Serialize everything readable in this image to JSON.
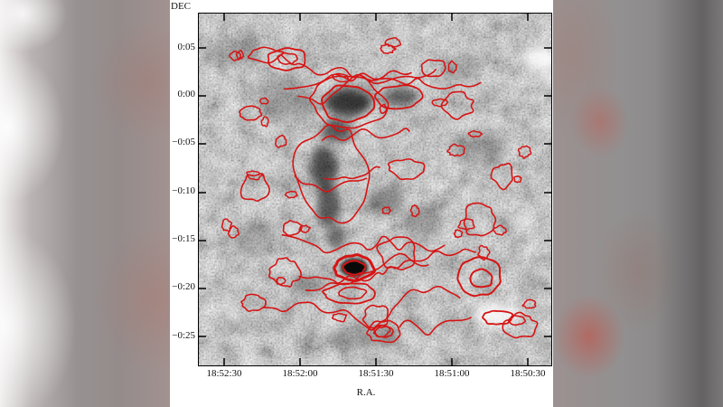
{
  "figure": {
    "y_axis_title": "DEC",
    "x_axis_title": "R.A.",
    "y_ticks": [
      "0:05",
      "0:00",
      "−0:05",
      "−0:10",
      "−0:15",
      "−0:20",
      "−0:25"
    ],
    "x_ticks": [
      "18:52:30",
      "18:52:00",
      "18:51:30",
      "18:51:00",
      "18:50:30"
    ],
    "contour_color": "#d61414",
    "frame_color": "#000000"
  },
  "chart_data": {
    "type": "heatmap",
    "title": "",
    "xlabel": "R.A.",
    "ylabel": "DEC",
    "x_tick_labels": [
      "18:52:30",
      "18:52:00",
      "18:51:30",
      "18:51:00",
      "18:50:30"
    ],
    "y_tick_labels": [
      "0:05",
      "0:00",
      "−0:05",
      "−0:10",
      "−0:15",
      "−0:20",
      "−0:25"
    ],
    "x_axis_note": "right ascension increases to the left",
    "background": "noisy grayscale intensity map",
    "overlay": "red contour lines",
    "notable_features": [
      "dark curved filament from about (18:51:50, 0:01) down to (18:51:48, −0:12)",
      "compact dark knot near (18:51:45, −0:17) enclosed by a strong contour ring",
      "nested contour rings near (18:51:45, −0:19) and (18:50:55, −0:17)",
      "bright spot near (18:50:35, −0:02)",
      "bright patch near (18:50:55, −0:21)"
    ],
    "legend_position": "none",
    "grid": false
  }
}
